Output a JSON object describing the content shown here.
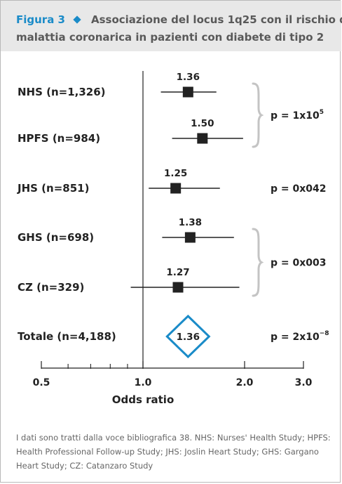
{
  "header": {
    "figure_label": "Figura 3",
    "title_line1": "Associazione del locus 1q25 con il rischio di",
    "title_line2": "malattia coronarica in pazienti con diabete di tipo 2"
  },
  "chart_data": {
    "type": "forest",
    "title": "Associazione del locus 1q25 con il rischio di malattia coronarica in pazienti con diabete di tipo 2",
    "xlabel": "Odds ratio",
    "xscale": "log",
    "xlim": [
      0.5,
      3.0
    ],
    "reference_line": 1.0,
    "ticks_major": [
      {
        "value": 0.5,
        "label": "0.5"
      },
      {
        "value": 1.0,
        "label": "1.0"
      },
      {
        "value": 2.0,
        "label": "2.0"
      },
      {
        "value": 3.0,
        "label": "3.0"
      }
    ],
    "ticks_minor": [
      0.6,
      0.7,
      0.8,
      0.9
    ],
    "studies": [
      {
        "label": "NHS (n=1,326)",
        "or": 1.36,
        "or_label": "1.36",
        "ci": [
          1.13,
          1.65
        ]
      },
      {
        "label": "HPFS (n=984)",
        "or": 1.5,
        "or_label": "1.50",
        "ci": [
          1.22,
          1.98
        ]
      },
      {
        "label": "JHS (n=851)",
        "or": 1.25,
        "or_label": "1.25",
        "ci": [
          1.04,
          1.69
        ]
      },
      {
        "label": "GHS (n=698)",
        "or": 1.38,
        "or_label": "1.38",
        "ci": [
          1.14,
          1.86
        ]
      },
      {
        "label": "CZ (n=329)",
        "or": 1.27,
        "or_label": "1.27",
        "ci": [
          0.92,
          1.93
        ]
      }
    ],
    "pooled": {
      "label": "Totale (n=4,188)",
      "or": 1.36,
      "or_label": "1.36"
    },
    "pvalues": [
      {
        "text": "p = 1x10",
        "sup": "5",
        "rows": [
          0,
          1
        ]
      },
      {
        "text": "p = 0x042",
        "sup": "",
        "rows": [
          2
        ]
      },
      {
        "text": "p = 0x003",
        "sup": "",
        "rows": [
          3,
          4
        ]
      },
      {
        "text": "p = 2x10",
        "sup": "−8",
        "rows": [
          5
        ]
      }
    ],
    "colors": {
      "marker": "#222222",
      "pooled": "#1a8bc8",
      "brace": "#c4c4c4",
      "text": "#222222"
    }
  },
  "caption": "I dati sono tratti dalla voce bibliografica 38. NHS: Nurses' Health Study; HPFS: Health Professional Follow-up Study; JHS: Joslin Heart Study; GHS: Gargano Heart Study; CZ: Catanzaro Study"
}
